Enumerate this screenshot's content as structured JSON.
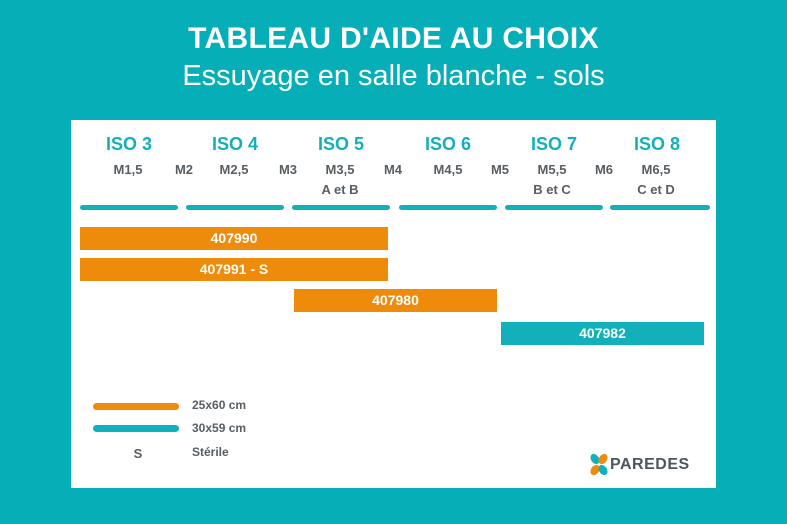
{
  "header": {
    "title": "TABLEAU D'AIDE AU CHOIX",
    "subtitle": "Essuyage en salle blanche - sols"
  },
  "iso_classes": [
    "ISO 3",
    "ISO 4",
    "ISO 5",
    "ISO 6",
    "ISO 7",
    "ISO 8"
  ],
  "m_classes": [
    "M1,5",
    "M2",
    "M2,5",
    "M3",
    "M3,5",
    "M4",
    "M4,5",
    "M5",
    "M5,5",
    "M6",
    "M6,5"
  ],
  "sub_classes": [
    "A et B",
    "B et C",
    "C et D"
  ],
  "products": [
    {
      "label": "407990",
      "color": "#ee8b0a"
    },
    {
      "label": "407991 - S",
      "color": "#ee8b0a"
    },
    {
      "label": "407980",
      "color": "#ee8b0a"
    },
    {
      "label": "407982",
      "color": "#12b0ba"
    }
  ],
  "legend": {
    "orange_label": "25x60 cm",
    "teal_label": "30x59 cm",
    "s_key": "S",
    "s_label": "Stérile",
    "orange_color": "#ee8b0a",
    "teal_color": "#12b0ba"
  },
  "brand": {
    "name": "PAREDES"
  },
  "colors": {
    "background": "#06aeb8",
    "accent": "#12b0ba",
    "orange": "#ee8b0a"
  }
}
